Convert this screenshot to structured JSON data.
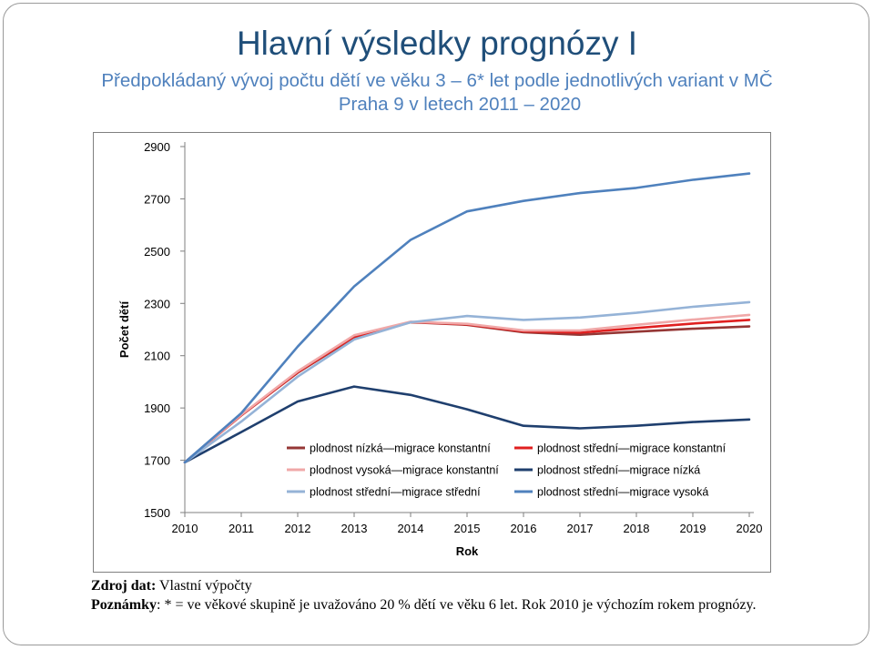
{
  "slide": {
    "title": "Hlavní výsledky prognózy I",
    "subtitle_line1": "Předpokládaný vývoj počtu dětí ve věku 3 – 6* let podle jednotlivých variant v MČ",
    "subtitle_line2": "Praha 9 v letech 2011 – 2020",
    "source_label": "Zdroj dat:",
    "source_text": " Vlastní výpočty",
    "notes_label": "Poznámky",
    "notes_text": ": * = ve věkové skupině je uvažováno 20 % dětí ve věku 6 let. Rok 2010 je výchozím rokem prognózy."
  },
  "colors": {
    "title": "#1f4e79",
    "subtitle": "#4f81bd"
  },
  "chart_data": {
    "type": "line",
    "title": "",
    "xlabel": "Rok",
    "ylabel": "Počet dětí",
    "x": [
      2010,
      2011,
      2012,
      2013,
      2014,
      2015,
      2016,
      2017,
      2018,
      2019,
      2020
    ],
    "ylim": [
      1500,
      2900
    ],
    "yticks": [
      1500,
      1700,
      1900,
      2100,
      2300,
      2500,
      2700,
      2900
    ],
    "grid": false,
    "legend_position": "bottom-right",
    "series": [
      {
        "name": "plodnost nízká—migrace konstantní",
        "color": "#953735",
        "values": [
          1692,
          1872,
          2035,
          2170,
          2228,
          2218,
          2190,
          2180,
          2192,
          2203,
          2212
        ]
      },
      {
        "name": "plodnost střední—migrace konstantní",
        "color": "#e02020",
        "values": [
          1692,
          1872,
          2037,
          2173,
          2229,
          2220,
          2193,
          2188,
          2206,
          2223,
          2237
        ]
      },
      {
        "name": "plodnost vysoká—migrace konstantní",
        "color": "#f0a8a8",
        "values": [
          1692,
          1874,
          2040,
          2178,
          2230,
          2222,
          2197,
          2196,
          2218,
          2238,
          2256
        ]
      },
      {
        "name": "plodnost střední—migrace nízká",
        "color": "#1f3f6e",
        "values": [
          1692,
          1808,
          1925,
          1982,
          1950,
          1895,
          1832,
          1822,
          1832,
          1846,
          1856
        ]
      },
      {
        "name": "plodnost střední—migrace střední",
        "color": "#95b3d7",
        "values": [
          1692,
          1848,
          2020,
          2162,
          2228,
          2252,
          2237,
          2246,
          2264,
          2287,
          2305
        ]
      },
      {
        "name": "plodnost střední—migrace vysoká",
        "color": "#4f81bd",
        "values": [
          1692,
          1880,
          2135,
          2365,
          2543,
          2652,
          2692,
          2722,
          2742,
          2773,
          2797
        ]
      }
    ]
  }
}
